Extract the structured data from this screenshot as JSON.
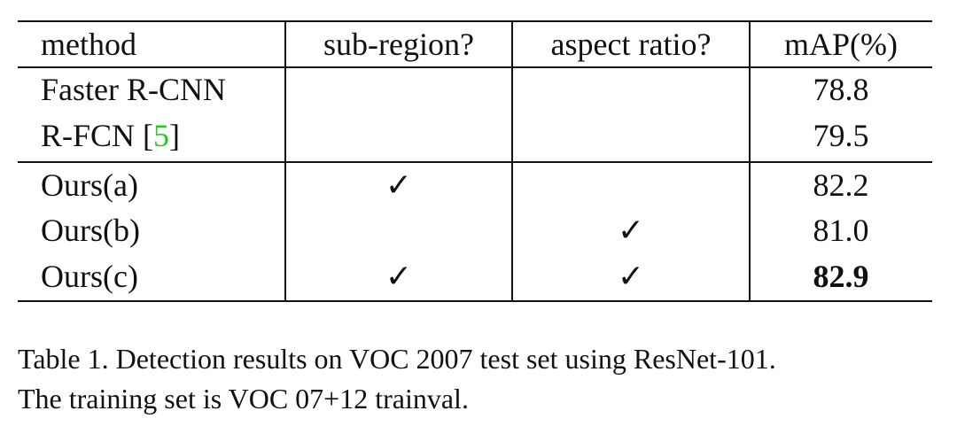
{
  "table": {
    "header": [
      "method",
      "sub-region?",
      "aspect ratio?",
      "mAP(%)"
    ],
    "rows": [
      {
        "method": "Faster R-CNN",
        "mAP": "78.8"
      },
      {
        "method": "R-FCN",
        "ref": "5",
        "mAP": "79.5"
      },
      {
        "method": "Ours(a)",
        "sub_region": "✓",
        "mAP": "82.2"
      },
      {
        "method": "Ours(b)",
        "aspect_ratio": "✓",
        "mAP": "81.0"
      },
      {
        "method": "Ours(c)",
        "sub_region": "✓",
        "aspect_ratio": "✓",
        "mAP": "82.9",
        "bold": true
      }
    ]
  },
  "caption": [
    "Table 1. Detection results on VOC 2007 test set using ResNet-101.",
    "The training set is VOC 07+12 trainval."
  ]
}
